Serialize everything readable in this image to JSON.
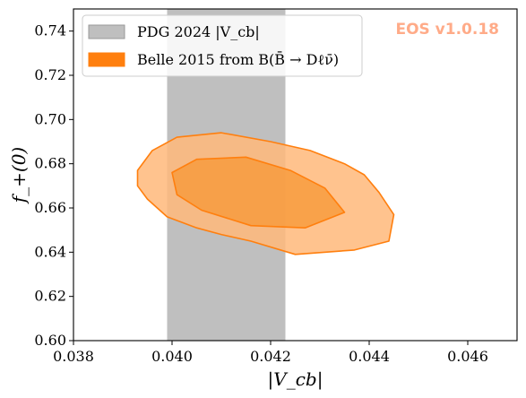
{
  "chart_data": {
    "type": "contour",
    "watermark": "EOS v1.0.18",
    "xlabel": "|V_cb|",
    "ylabel": "f_+(0)",
    "xlim": [
      0.038,
      0.047
    ],
    "ylim": [
      0.6,
      0.75
    ],
    "x_ticks": [
      0.038,
      0.04,
      0.042,
      0.044,
      0.046
    ],
    "x_tick_labels": [
      "0.038",
      "0.040",
      "0.042",
      "0.044",
      "0.046"
    ],
    "y_ticks": [
      0.6,
      0.62,
      0.64,
      0.66,
      0.68,
      0.7,
      0.72,
      0.74
    ],
    "y_tick_labels": [
      "0.60",
      "0.62",
      "0.64",
      "0.66",
      "0.68",
      "0.70",
      "0.72",
      "0.74"
    ],
    "legend_position": "top-left",
    "legend": [
      {
        "label": "PDG 2024 |V_cb|",
        "color": "#bfbfbf"
      },
      {
        "label": "Belle 2015 from B(B̄ → Dℓν̄)",
        "color": "#ff7f0e"
      }
    ],
    "band": {
      "name": "PDG 2024 |V_cb|",
      "x_range": [
        0.0399,
        0.0423
      ],
      "color": "#bfbfbf"
    },
    "contours": {
      "outer": {
        "color": "#ffb97a",
        "edge": "#ff7f0e",
        "points": [
          [
            0.0393,
            0.677
          ],
          [
            0.0396,
            0.686
          ],
          [
            0.0401,
            0.692
          ],
          [
            0.041,
            0.694
          ],
          [
            0.042,
            0.69
          ],
          [
            0.0428,
            0.686
          ],
          [
            0.0435,
            0.68
          ],
          [
            0.0439,
            0.675
          ],
          [
            0.0442,
            0.667
          ],
          [
            0.0445,
            0.657
          ],
          [
            0.0444,
            0.645
          ],
          [
            0.0437,
            0.641
          ],
          [
            0.0425,
            0.639
          ],
          [
            0.0416,
            0.645
          ],
          [
            0.041,
            0.648
          ],
          [
            0.0405,
            0.651
          ],
          [
            0.0399,
            0.656
          ],
          [
            0.0395,
            0.664
          ],
          [
            0.0393,
            0.67
          ]
        ]
      },
      "inner": {
        "color": "#f79a3a",
        "edge": "#ff7f0e",
        "points": [
          [
            0.04,
            0.676
          ],
          [
            0.0405,
            0.682
          ],
          [
            0.0415,
            0.683
          ],
          [
            0.0424,
            0.677
          ],
          [
            0.0431,
            0.669
          ],
          [
            0.0435,
            0.658
          ],
          [
            0.0427,
            0.651
          ],
          [
            0.0416,
            0.652
          ],
          [
            0.0406,
            0.659
          ],
          [
            0.0401,
            0.666
          ]
        ]
      }
    }
  }
}
